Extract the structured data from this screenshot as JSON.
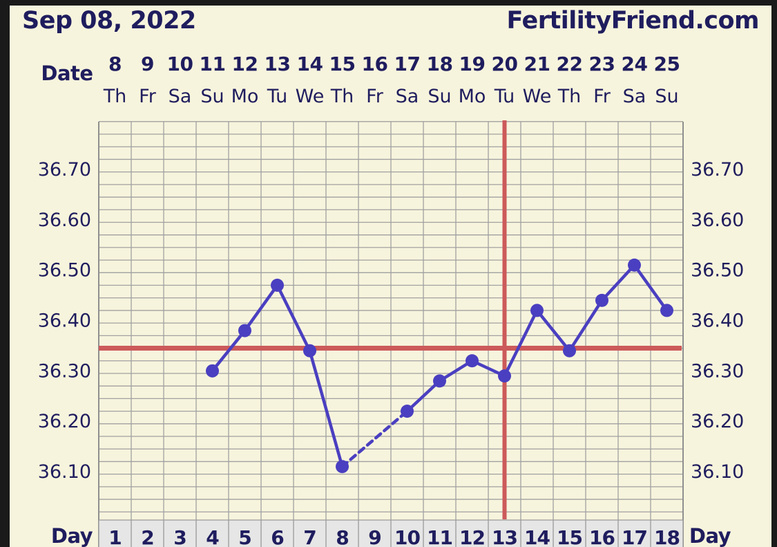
{
  "header": {
    "date": "Sep 08, 2022",
    "site": "FertilityFriend.com"
  },
  "labels": {
    "date_row": "Date",
    "day_row": "Day"
  },
  "colors": {
    "background": "#f7f4dd",
    "grid": "#a0a0a0",
    "line": "#4a3fc0",
    "coverline": "#cc5a5a",
    "text": "#1f1d5e"
  },
  "chart_data": {
    "type": "line",
    "title": "",
    "dates": [
      "8",
      "9",
      "10",
      "11",
      "12",
      "13",
      "14",
      "15",
      "16",
      "17",
      "18",
      "19",
      "20",
      "21",
      "22",
      "23",
      "24",
      "25"
    ],
    "weekdays": [
      "Th",
      "Fr",
      "Sa",
      "Su",
      "Mo",
      "Tu",
      "We",
      "Th",
      "Fr",
      "Sa",
      "Su",
      "Mo",
      "Tu",
      "We",
      "Th",
      "Fr",
      "Sa",
      "Su"
    ],
    "days": [
      1,
      2,
      3,
      4,
      5,
      6,
      7,
      8,
      9,
      10,
      11,
      12,
      13,
      14,
      15,
      16,
      17,
      18
    ],
    "y_ticks": [
      "36.70",
      "36.60",
      "36.50",
      "36.40",
      "36.30",
      "36.20",
      "36.10"
    ],
    "ylim": [
      36.01,
      36.8
    ],
    "series": [
      {
        "values": [
          null,
          null,
          null,
          36.3,
          36.38,
          36.47,
          36.34,
          36.11,
          null,
          36.22,
          36.28,
          36.32,
          36.29,
          36.42,
          36.34,
          36.44,
          36.51,
          36.42
        ]
      }
    ],
    "coverline": 36.345,
    "ovulation_marker_day": 13,
    "grid": true
  }
}
